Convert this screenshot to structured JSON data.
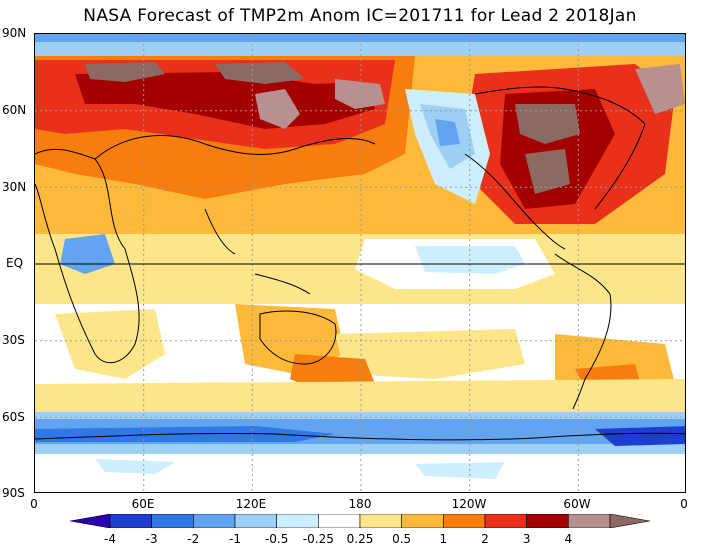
{
  "title": "NASA Forecast of TMP2m Anom IC=201711 for Lead 2 2018Jan",
  "lat_labels": [
    "90N",
    "60N",
    "30N",
    "EQ",
    "30S",
    "60S",
    "90S"
  ],
  "lon_labels": [
    "0",
    "60E",
    "120E",
    "180",
    "120W",
    "60W",
    "0"
  ],
  "colorbar": {
    "labels": [
      "-4",
      "-3",
      "-2",
      "-1",
      "-0.5",
      "-0.25",
      "0.25",
      "0.5",
      "1",
      "2",
      "3",
      "4"
    ],
    "colors": [
      "#2a00b0",
      "#1c3fd0",
      "#2f78e6",
      "#63a4f0",
      "#9ed0f5",
      "#cdeefc",
      "#ffffff",
      "#fde58a",
      "#fdb93a",
      "#f77d0d",
      "#e8301a",
      "#a40000",
      "#b89090",
      "#8c6a62"
    ]
  },
  "colors": {
    "ocean_warm": "#fde58a",
    "anomaly_strong_warm": "#a40000",
    "anomaly_cold": "#2a00b0"
  }
}
